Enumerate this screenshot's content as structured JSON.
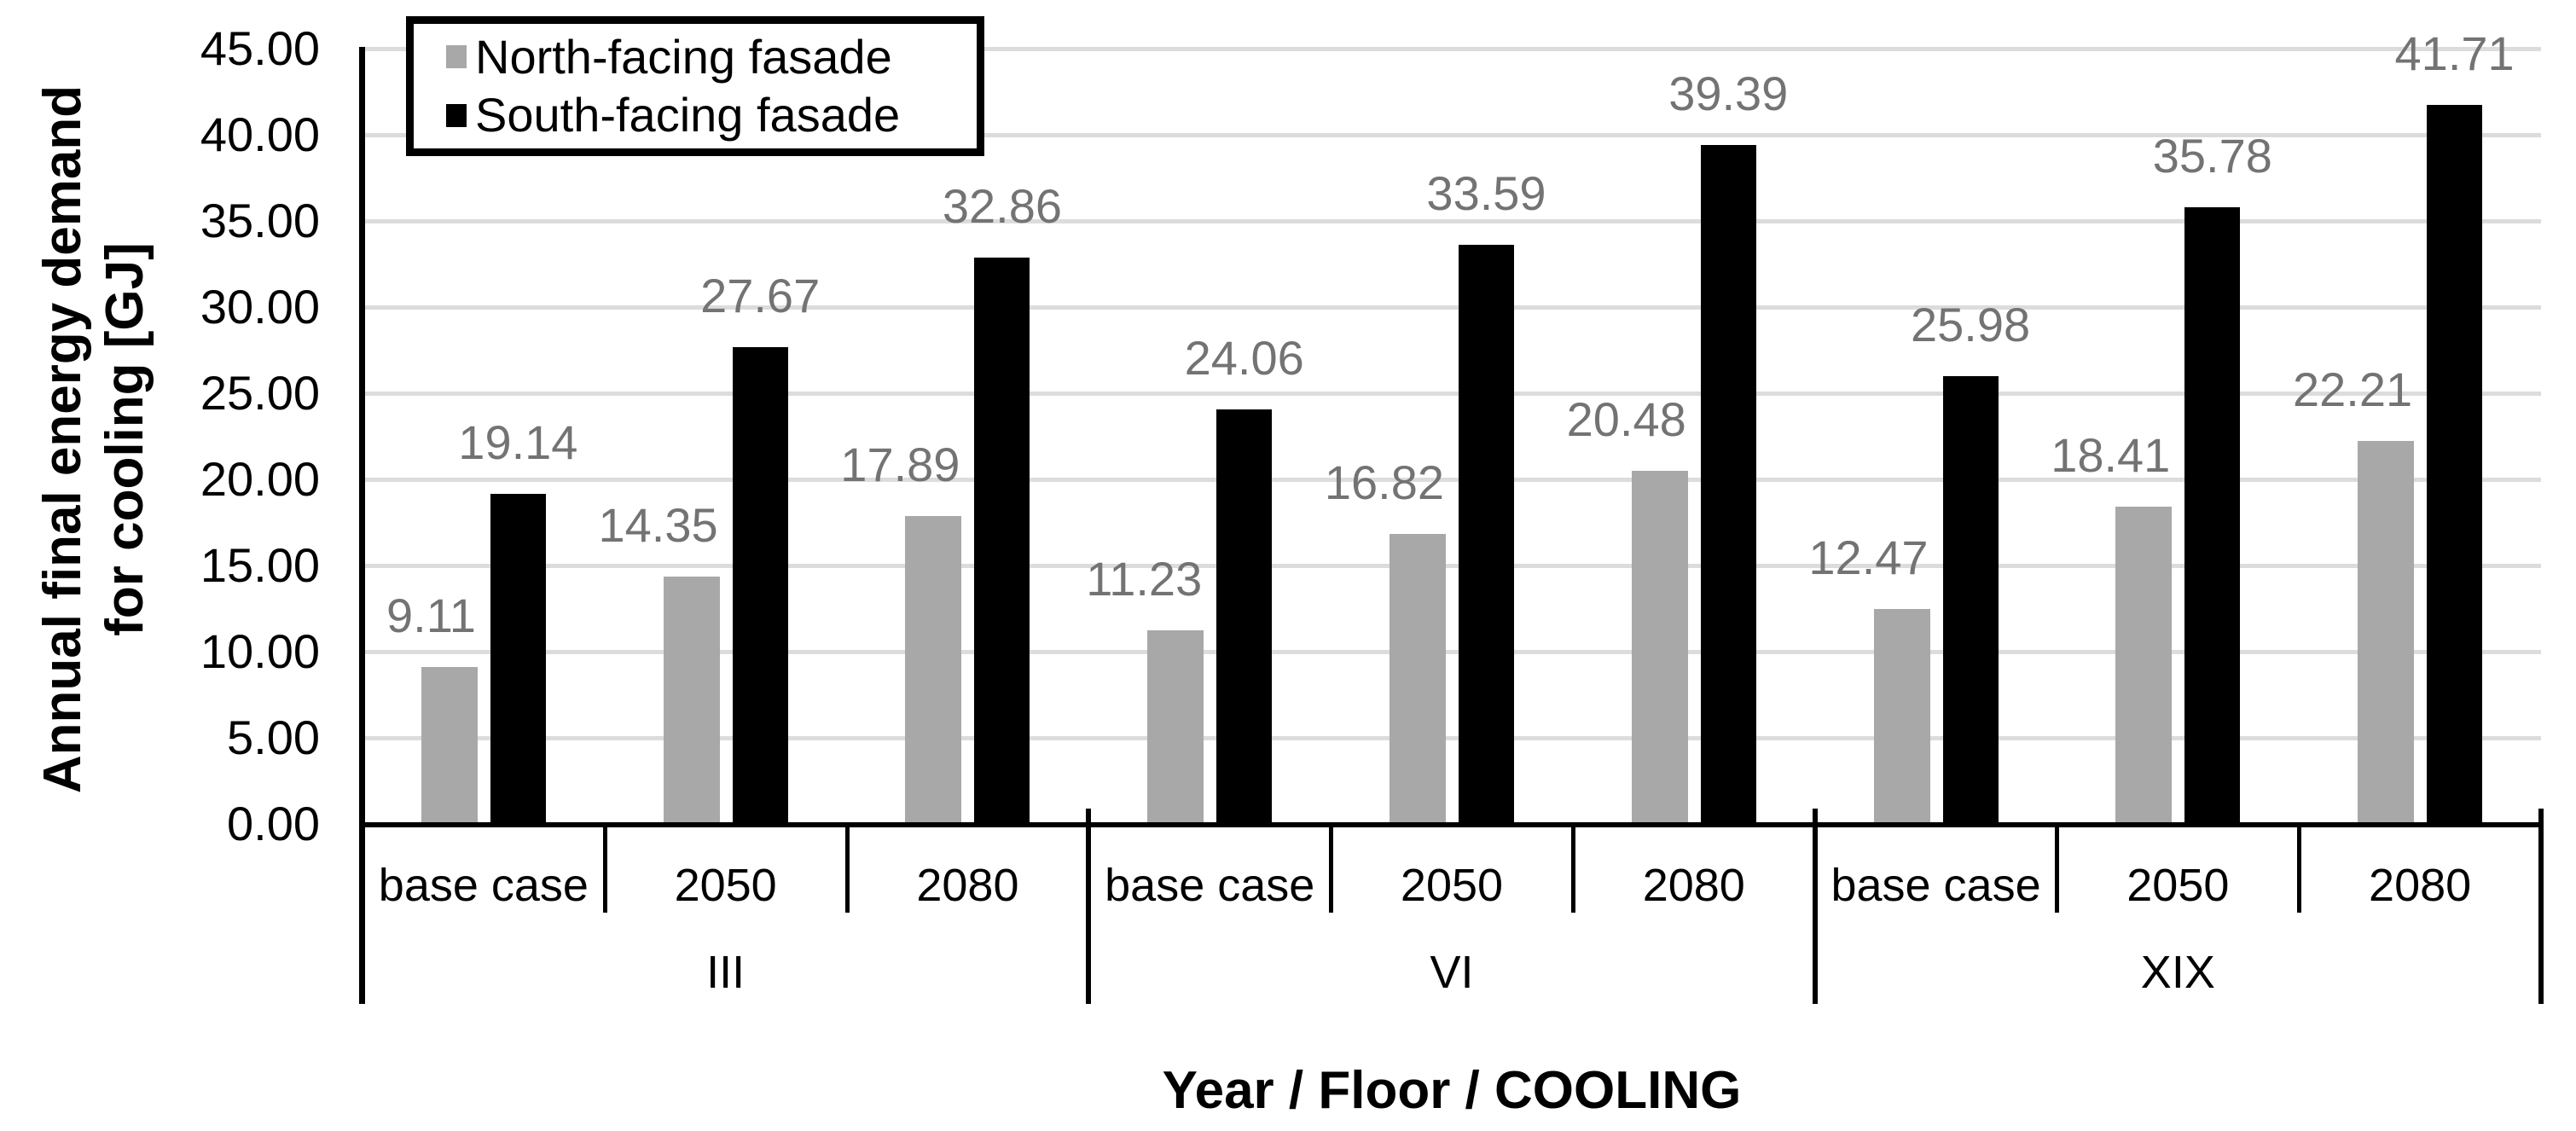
{
  "chart_data": {
    "type": "bar",
    "title": "",
    "xlabel": "Year / Floor / COOLING",
    "ylabel_lines": [
      "Annual final energy demand",
      "for cooling [GJ]"
    ],
    "ylim": [
      0,
      45
    ],
    "ytick_step": 5,
    "ytick_decimals": 2,
    "grid": true,
    "legend_position": "top-left",
    "groups": [
      "III",
      "VI",
      "XIX"
    ],
    "categories": [
      "base case",
      "2050",
      "2080",
      "base case",
      "2050",
      "2080",
      "base case",
      "2050",
      "2080"
    ],
    "series": [
      {
        "name": "North-facing fasade",
        "color": "#a8a8a8",
        "values": [
          9.11,
          14.35,
          17.89,
          11.23,
          16.82,
          20.48,
          12.47,
          18.41,
          22.21
        ]
      },
      {
        "name": "South-facing fasade",
        "color": "#000000",
        "values": [
          19.14,
          27.67,
          32.86,
          24.06,
          33.59,
          39.39,
          25.98,
          35.78,
          41.71
        ]
      }
    ],
    "colors": {
      "data_label": "#737373",
      "gridline": "#dcdcdc",
      "axis": "#000000",
      "background": "#ffffff"
    }
  }
}
